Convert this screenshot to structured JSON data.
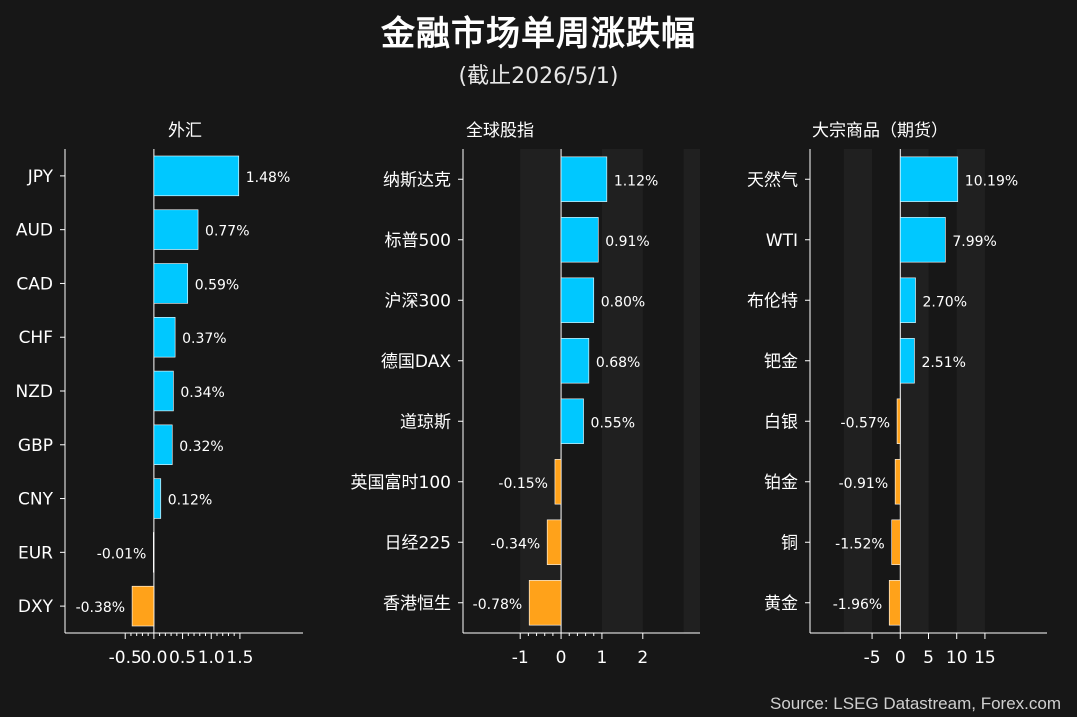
{
  "title": "金融市场单周涨跌幅",
  "subtitle": "(截止2026/5/1)",
  "source": "Source: LSEG Datastream, Forex.com",
  "colors": {
    "positive": "#00C8FF",
    "negative": "#FFA21A",
    "background": "#171717",
    "band": "#202020",
    "axis": "#ffffff"
  },
  "chart_data": [
    {
      "type": "bar",
      "orientation": "horizontal",
      "title": "外汇",
      "categories": [
        "JPY",
        "AUD",
        "CAD",
        "CHF",
        "NZD",
        "GBP",
        "CNY",
        "EUR",
        "DXY"
      ],
      "values": [
        1.48,
        0.77,
        0.59,
        0.37,
        0.34,
        0.32,
        0.12,
        -0.01,
        -0.38
      ],
      "value_labels": [
        "1.48%",
        "0.77%",
        "0.59%",
        "0.37%",
        "0.34%",
        "0.32%",
        "0.12%",
        "-0.01%",
        "-0.38%"
      ],
      "xlim": [
        -1.55,
        2.6
      ],
      "major_ticks": [
        -0.5,
        0.0,
        0.5,
        1.0,
        1.5
      ],
      "major_tick_labels": [
        "-0.5",
        "0.0",
        "0.5",
        "1.0",
        "1.5"
      ],
      "minor_ticks": [
        -0.4,
        -0.3,
        -0.2,
        -0.1,
        0.1,
        0.2,
        0.3,
        0.4,
        0.6,
        0.7,
        0.8,
        0.9,
        1.1,
        1.2,
        1.3,
        1.4
      ],
      "bands": []
    },
    {
      "type": "bar",
      "orientation": "horizontal",
      "title": "全球股指",
      "categories": [
        "纳斯达克",
        "标普500",
        "沪深300",
        "德国DAX",
        "道琼斯",
        "英国富时100",
        "日经225",
        "香港恒生"
      ],
      "values": [
        1.12,
        0.91,
        0.8,
        0.68,
        0.55,
        -0.15,
        -0.34,
        -0.78
      ],
      "value_labels": [
        "1.12%",
        "0.91%",
        "0.80%",
        "0.68%",
        "0.55%",
        "-0.15%",
        "-0.34%",
        "-0.78%"
      ],
      "xlim": [
        -2.4,
        3.4
      ],
      "major_ticks": [
        -1,
        0,
        1,
        2
      ],
      "major_tick_labels": [
        "-1",
        "0",
        "1",
        "2"
      ],
      "minor_ticks": [
        -0.8,
        -0.6,
        -0.4,
        -0.2,
        0.2,
        0.4,
        0.6,
        0.8
      ],
      "bands": [
        [
          -1,
          0
        ],
        [
          1,
          2
        ],
        [
          3,
          3.4
        ]
      ]
    },
    {
      "type": "bar",
      "orientation": "horizontal",
      "title": "大宗商品（期货）",
      "categories": [
        "天然气",
        "WTI",
        "布伦特",
        "钯金",
        "白银",
        "铂金",
        "铜",
        "黄金"
      ],
      "values": [
        10.19,
        7.99,
        2.7,
        2.51,
        -0.57,
        -0.91,
        -1.52,
        -1.96
      ],
      "value_labels": [
        "10.19%",
        "7.99%",
        "2.70%",
        "2.51%",
        "-0.57%",
        "-0.91%",
        "-1.52%",
        "-1.96%"
      ],
      "xlim": [
        -16,
        26
      ],
      "major_ticks": [
        -5,
        0,
        5,
        10,
        15
      ],
      "major_tick_labels": [
        "-5",
        "0",
        "5",
        "10",
        "15"
      ],
      "minor_ticks": [],
      "bands": [
        [
          -10,
          -5
        ],
        [
          0,
          5
        ],
        [
          10,
          15
        ]
      ]
    }
  ]
}
